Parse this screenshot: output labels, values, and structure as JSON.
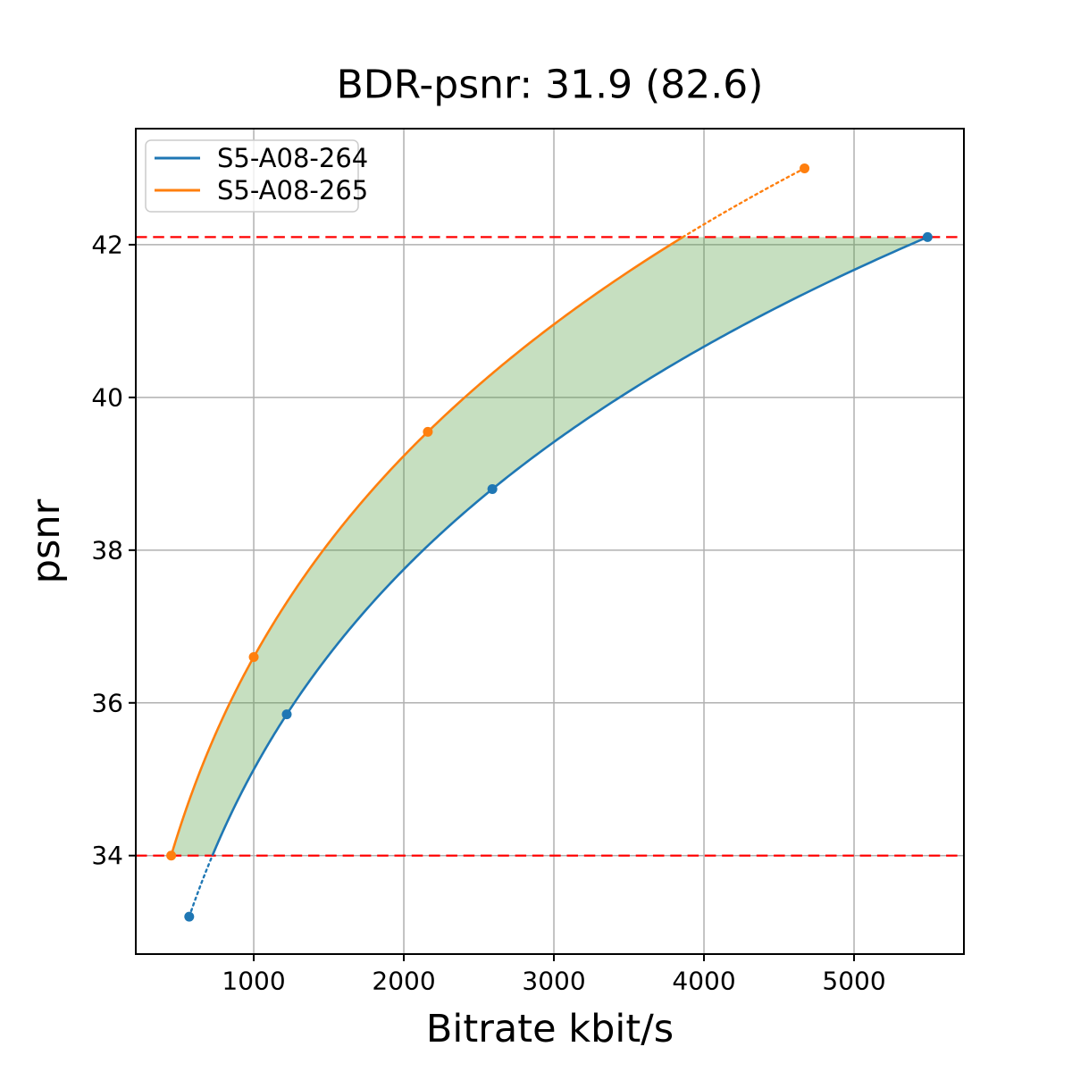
{
  "title": "BDR-psnr: 31.9 (82.6)",
  "chart_data": {
    "type": "line",
    "title": "BDR-psnr: 31.9 (82.6)",
    "xlabel": "Bitrate kbit/s",
    "ylabel": "psnr",
    "xlim": [
      214,
      5732
    ],
    "ylim": [
      32.71,
      43.52
    ],
    "xticks": [
      1000,
      2000,
      3000,
      4000,
      5000
    ],
    "yticks": [
      34,
      36,
      38,
      40,
      42
    ],
    "grid": true,
    "grid_color": "#b0b0b0",
    "legend_position": "upper-left",
    "interpolation": "pchip-on-log10-bitrate",
    "series": [
      {
        "name": "S5-A08-264",
        "color": "#1f77b4",
        "points": [
          [
            570,
            33.2
          ],
          [
            1220,
            35.85
          ],
          [
            2590,
            38.8
          ],
          [
            5490,
            42.1
          ]
        ]
      },
      {
        "name": "S5-A08-265",
        "color": "#ff7f0e",
        "points": [
          [
            450,
            34.0
          ],
          [
            1000,
            36.6
          ],
          [
            2160,
            39.55
          ],
          [
            4670,
            43.0
          ]
        ]
      }
    ],
    "clip_lines": {
      "low": 34.0,
      "high": 42.1,
      "color": "#ff0000",
      "style": "dashed"
    },
    "fill_between": {
      "from": 34.0,
      "to": 42.1,
      "color": "#4e9a3c",
      "alpha": 0.32
    }
  }
}
